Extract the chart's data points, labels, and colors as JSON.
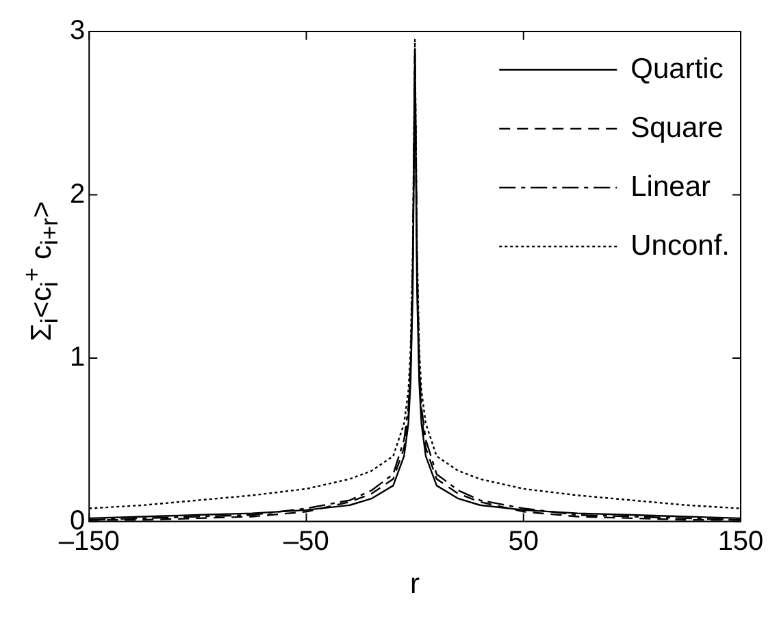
{
  "chart_data": {
    "type": "line",
    "xlabel": "r",
    "ylabel": "Σ$_{i}$<c$_{i}$$^{+}$ c$_{i+r}$>",
    "xlim": [
      -150,
      150
    ],
    "xticks": [
      {
        "value": -150,
        "label": "–150"
      },
      {
        "value": -50,
        "label": "–50"
      },
      50,
      150
    ],
    "ylim": [
      0,
      3
    ],
    "yticks": [
      0,
      1,
      2,
      3
    ],
    "grid": false,
    "legend": "top right",
    "x": [
      -150,
      -125,
      -100,
      -75,
      -50,
      -30,
      -20,
      -10,
      -5,
      -3,
      -2,
      -1,
      0,
      1,
      2,
      3,
      5,
      10,
      20,
      30,
      50,
      75,
      100,
      125,
      150
    ],
    "series": [
      {
        "name": "Quartic",
        "color": "#000000",
        "line_style": "solid",
        "values": [
          0.02,
          0.03,
          0.04,
          0.05,
          0.07,
          0.1,
          0.14,
          0.22,
          0.4,
          0.6,
          0.85,
          1.4,
          2.85,
          1.4,
          0.85,
          0.6,
          0.4,
          0.22,
          0.14,
          0.1,
          0.07,
          0.05,
          0.04,
          0.03,
          0.02
        ]
      },
      {
        "name": "Square",
        "color": "#000000",
        "line_style": "dashed",
        "values": [
          0.01,
          0.01,
          0.02,
          0.03,
          0.06,
          0.12,
          0.17,
          0.26,
          0.45,
          0.65,
          0.9,
          1.5,
          2.9,
          1.5,
          0.9,
          0.65,
          0.45,
          0.26,
          0.17,
          0.12,
          0.06,
          0.03,
          0.02,
          0.01,
          0.01
        ]
      },
      {
        "name": "Linear",
        "color": "#000000",
        "line_style": "dashdot",
        "values": [
          0.01,
          0.02,
          0.03,
          0.04,
          0.08,
          0.13,
          0.19,
          0.29,
          0.5,
          0.7,
          0.95,
          1.6,
          2.9,
          1.6,
          0.95,
          0.7,
          0.5,
          0.29,
          0.19,
          0.13,
          0.08,
          0.04,
          0.03,
          0.02,
          0.01
        ]
      },
      {
        "name": "Unconf.",
        "color": "#000000",
        "line_style": "dotted",
        "values": [
          0.08,
          0.1,
          0.13,
          0.16,
          0.2,
          0.26,
          0.31,
          0.4,
          0.6,
          0.8,
          1.05,
          1.65,
          2.95,
          1.65,
          1.05,
          0.8,
          0.6,
          0.4,
          0.31,
          0.26,
          0.2,
          0.16,
          0.13,
          0.1,
          0.08
        ]
      }
    ]
  }
}
